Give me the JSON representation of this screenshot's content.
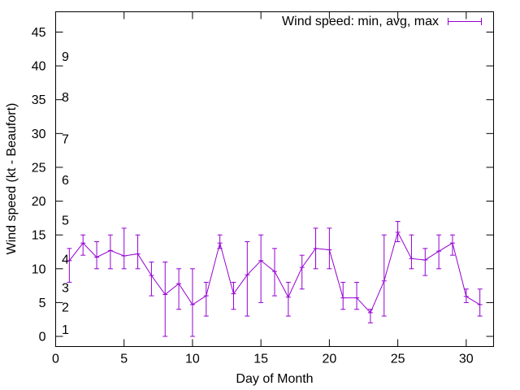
{
  "chart_data": {
    "type": "line",
    "xlabel": "Day of Month",
    "ylabel": "Wind speed (kt - Beaufort)",
    "xlim": [
      0,
      32
    ],
    "ylim": [
      -1.5,
      48
    ],
    "x_ticks": [
      0,
      5,
      10,
      15,
      20,
      25,
      30
    ],
    "y_ticks": [
      0,
      5,
      10,
      15,
      20,
      25,
      30,
      35,
      40,
      45
    ],
    "grid": false,
    "legend_position": "top-right",
    "beaufort_labels": [
      {
        "text": "1",
        "y": 1
      },
      {
        "text": "2",
        "y": 4.3
      },
      {
        "text": "3",
        "y": 7.2
      },
      {
        "text": "4",
        "y": 11.4
      },
      {
        "text": "5",
        "y": 17.2
      },
      {
        "text": "6",
        "y": 23.1
      },
      {
        "text": "7",
        "y": 29.2
      },
      {
        "text": "8",
        "y": 35.4
      },
      {
        "text": "9",
        "y": 41.4
      }
    ],
    "series": [
      {
        "name": "Wind speed: min, avg, max",
        "color": "#9400d3",
        "points": [
          {
            "x": 1,
            "avg": 11.2,
            "min": 8,
            "max": 13
          },
          {
            "x": 2,
            "avg": 13.8,
            "min": 12,
            "max": 15
          },
          {
            "x": 3,
            "avg": 11.7,
            "min": 10,
            "max": 14
          },
          {
            "x": 4,
            "avg": 12.7,
            "min": 10,
            "max": 15
          },
          {
            "x": 5,
            "avg": 11.9,
            "min": 10,
            "max": 16
          },
          {
            "x": 6,
            "avg": 12.2,
            "min": 10,
            "max": 15
          },
          {
            "x": 7,
            "avg": 9.0,
            "min": 6,
            "max": 11
          },
          {
            "x": 8,
            "avg": 6.2,
            "min": 0,
            "max": 11
          },
          {
            "x": 9,
            "avg": 7.8,
            "min": 4,
            "max": 10
          },
          {
            "x": 10,
            "avg": 4.7,
            "min": 0,
            "max": 10
          },
          {
            "x": 11,
            "avg": 6.0,
            "min": 3,
            "max": 8
          },
          {
            "x": 12,
            "avg": 13.8,
            "min": 13,
            "max": 15
          },
          {
            "x": 13,
            "avg": 6.3,
            "min": 4,
            "max": 8
          },
          {
            "x": 14,
            "avg": 9.1,
            "min": 3,
            "max": 14
          },
          {
            "x": 15,
            "avg": 11.2,
            "min": 5,
            "max": 15
          },
          {
            "x": 16,
            "avg": 9.6,
            "min": 6,
            "max": 13
          },
          {
            "x": 17,
            "avg": 5.8,
            "min": 3,
            "max": 8
          },
          {
            "x": 18,
            "avg": 10.2,
            "min": 7,
            "max": 12
          },
          {
            "x": 19,
            "avg": 13.0,
            "min": 10,
            "max": 16
          },
          {
            "x": 20,
            "avg": 12.8,
            "min": 10,
            "max": 16
          },
          {
            "x": 21,
            "avg": 5.7,
            "min": 4,
            "max": 8
          },
          {
            "x": 22,
            "avg": 5.7,
            "min": 4,
            "max": 8
          },
          {
            "x": 23,
            "avg": 3.5,
            "min": 2,
            "max": 4
          },
          {
            "x": 24,
            "avg": 8.2,
            "min": 3,
            "max": 15
          },
          {
            "x": 25,
            "avg": 15.4,
            "min": 14,
            "max": 17
          },
          {
            "x": 26,
            "avg": 11.5,
            "min": 10,
            "max": 15
          },
          {
            "x": 27,
            "avg": 11.3,
            "min": 9,
            "max": 13
          },
          {
            "x": 28,
            "avg": 12.6,
            "min": 10,
            "max": 15
          },
          {
            "x": 29,
            "avg": 13.8,
            "min": 12,
            "max": 15
          },
          {
            "x": 30,
            "avg": 5.9,
            "min": 5,
            "max": 7
          },
          {
            "x": 31,
            "avg": 4.7,
            "min": 3,
            "max": 7
          }
        ]
      }
    ]
  }
}
